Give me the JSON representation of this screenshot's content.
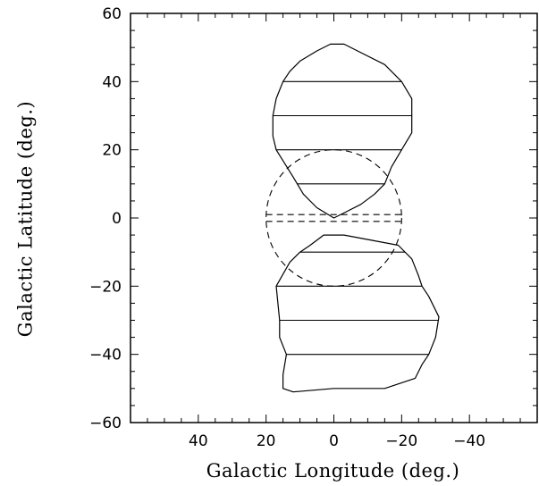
{
  "chart_data": {
    "type": "line",
    "title": "",
    "xlabel": "Galactic Longitude (deg.)",
    "ylabel": "Galactic Latitude (deg.)",
    "xlim": [
      60,
      -60
    ],
    "ylim": [
      -60,
      60
    ],
    "grid": false,
    "x_ticks": [
      {
        "value": 40,
        "label": "40"
      },
      {
        "value": 20,
        "label": "20"
      },
      {
        "value": 0,
        "label": "0"
      },
      {
        "value": -20,
        "label": "−20"
      },
      {
        "value": -40,
        "label": "−40"
      }
    ],
    "y_ticks": [
      {
        "value": 60,
        "label": "60"
      },
      {
        "value": 40,
        "label": "40"
      },
      {
        "value": 20,
        "label": "20"
      },
      {
        "value": 0,
        "label": "0"
      },
      {
        "value": -20,
        "label": "−20"
      },
      {
        "value": -40,
        "label": "−40"
      },
      {
        "value": -60,
        "label": "−60"
      }
    ],
    "x_minor_step": 5,
    "y_minor_step": 5,
    "north_lobe": {
      "outline": [
        [
          0,
          0
        ],
        [
          5,
          3
        ],
        [
          9,
          7
        ],
        [
          12,
          12
        ],
        [
          17,
          20
        ],
        [
          18,
          24
        ],
        [
          18,
          30
        ],
        [
          17,
          35
        ],
        [
          15,
          40
        ],
        [
          13,
          43
        ],
        [
          10,
          46
        ],
        [
          5,
          49
        ],
        [
          1,
          51
        ],
        [
          -3,
          51
        ],
        [
          -7,
          49
        ],
        [
          -15,
          45
        ],
        [
          -20,
          40
        ],
        [
          -23,
          35
        ],
        [
          -23,
          30
        ],
        [
          -23,
          25
        ],
        [
          -20,
          20
        ],
        [
          -17,
          15
        ],
        [
          -15,
          10
        ],
        [
          -12,
          7
        ],
        [
          -8,
          4
        ],
        [
          -4,
          2
        ],
        [
          0,
          0
        ]
      ],
      "hatch_latitudes": [
        10,
        20,
        30,
        40
      ]
    },
    "south_lobe": {
      "outline": [
        [
          -3,
          -5
        ],
        [
          -19,
          -8
        ],
        [
          -23,
          -12
        ],
        [
          -25,
          -17
        ],
        [
          -26,
          -20
        ],
        [
          -28,
          -23
        ],
        [
          -31,
          -29
        ],
        [
          -30,
          -35
        ],
        [
          -28,
          -40
        ],
        [
          -26,
          -43
        ],
        [
          -24,
          -47
        ],
        [
          -15,
          -50
        ],
        [
          -7,
          -50
        ],
        [
          0,
          -50
        ],
        [
          12,
          -51
        ],
        [
          15,
          -50
        ],
        [
          15,
          -46
        ],
        [
          14,
          -40
        ],
        [
          16,
          -35
        ],
        [
          16,
          -30
        ],
        [
          17,
          -20
        ],
        [
          13,
          -13
        ],
        [
          10,
          -10
        ],
        [
          7,
          -8
        ],
        [
          3,
          -5
        ],
        [
          -3,
          -5
        ]
      ],
      "hatch_latitudes": [
        -10,
        -20,
        -30,
        -40
      ]
    },
    "bulge_circle": {
      "center": [
        0,
        0
      ],
      "radius": 20,
      "style": "dashed"
    },
    "plane_lines": [
      {
        "latitude": 1,
        "style": "dashed",
        "x_range": [
          20,
          -20
        ]
      },
      {
        "latitude": -1,
        "style": "dashed",
        "x_range": [
          20,
          -20
        ]
      }
    ]
  }
}
